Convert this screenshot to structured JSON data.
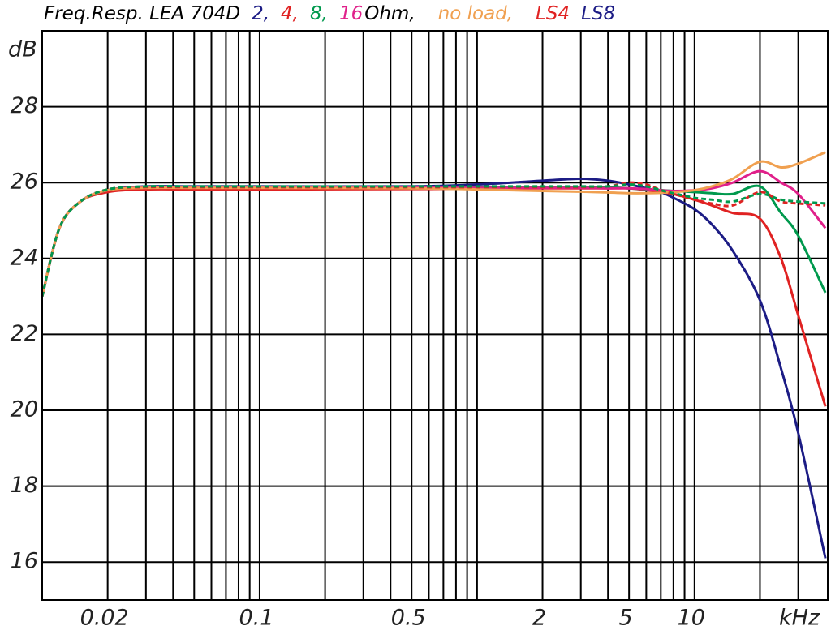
{
  "chart_data": {
    "type": "line",
    "title": "Freq.Resp. LEA 704D",
    "unit_label": "Ohm,",
    "y_label": "dB",
    "x_label": "kHz",
    "log_x": true,
    "grid": true,
    "x": [
      0.01,
      0.012,
      0.015,
      0.02,
      0.03,
      0.05,
      0.1,
      0.5,
      1,
      2,
      3,
      4,
      5,
      6,
      7,
      8,
      10,
      12,
      15,
      20,
      25,
      30,
      40
    ],
    "xlim": [
      0.01,
      41
    ],
    "xticks": [
      0.02,
      0.1,
      0.5,
      2,
      5,
      10
    ],
    "xgrid": [
      0.02,
      0.03,
      0.04,
      0.05,
      0.06,
      0.07,
      0.08,
      0.09,
      0.1,
      0.2,
      0.3,
      0.4,
      0.5,
      0.6,
      0.7,
      0.8,
      0.9,
      1,
      2,
      3,
      4,
      5,
      6,
      7,
      8,
      9,
      10,
      20,
      30
    ],
    "ylim": [
      15,
      30
    ],
    "yticks": [
      16,
      18,
      20,
      22,
      24,
      26,
      28
    ],
    "series": [
      {
        "name": "2,",
        "color": "#1c1c85",
        "dashed": false,
        "values": [
          23,
          24.8,
          25.5,
          25.8,
          25.9,
          25.9,
          25.9,
          25.9,
          25.95,
          26.05,
          26.1,
          26.05,
          25.95,
          25.85,
          25.75,
          25.6,
          25.3,
          24.9,
          24.2,
          22.9,
          21.1,
          19.4,
          16.1
        ]
      },
      {
        "name": "4,",
        "color": "#e02222",
        "dashed": false,
        "values": [
          23,
          24.8,
          25.5,
          25.75,
          25.82,
          25.82,
          25.82,
          25.83,
          25.84,
          25.85,
          25.85,
          25.85,
          25.85,
          25.8,
          25.75,
          25.7,
          25.55,
          25.4,
          25.2,
          25.05,
          24.0,
          22.5,
          20.1
        ]
      },
      {
        "name": "8,",
        "color": "#00994d",
        "dashed": false,
        "values": [
          23,
          24.8,
          25.5,
          25.8,
          25.88,
          25.88,
          25.88,
          25.88,
          25.88,
          25.88,
          25.87,
          25.87,
          25.85,
          25.82,
          25.8,
          25.78,
          25.75,
          25.72,
          25.7,
          25.9,
          25.2,
          24.6,
          23.1
        ]
      },
      {
        "name": "16",
        "color": "#e0208a",
        "dashed": false,
        "values": [
          23,
          24.8,
          25.5,
          25.8,
          25.87,
          25.87,
          25.87,
          25.87,
          25.86,
          25.86,
          25.86,
          25.85,
          25.85,
          25.83,
          25.8,
          25.78,
          25.8,
          25.85,
          26.0,
          26.3,
          26.0,
          25.7,
          24.8
        ]
      },
      {
        "name": "no load,",
        "color": "#f0a050",
        "dashed": false,
        "values": [
          23,
          24.8,
          25.5,
          25.8,
          25.86,
          25.86,
          25.86,
          25.85,
          25.82,
          25.78,
          25.76,
          25.74,
          25.72,
          25.72,
          25.73,
          25.75,
          25.8,
          25.9,
          26.1,
          26.55,
          26.4,
          26.5,
          26.8
        ]
      },
      {
        "name": "LS4",
        "color": "#e02222",
        "dashed": true,
        "values": [
          23,
          24.8,
          25.5,
          25.82,
          25.88,
          25.88,
          25.88,
          25.88,
          25.88,
          25.88,
          25.88,
          25.9,
          26.0,
          25.95,
          25.8,
          25.7,
          25.55,
          25.45,
          25.4,
          25.75,
          25.5,
          25.45,
          25.4
        ]
      },
      {
        "name": "LS8",
        "color": "#00994d",
        "legend_color": "#1c1c85",
        "dashed": true,
        "values": [
          23,
          24.8,
          25.5,
          25.82,
          25.9,
          25.9,
          25.9,
          25.9,
          25.9,
          25.9,
          25.9,
          25.9,
          25.95,
          25.9,
          25.8,
          25.72,
          25.6,
          25.55,
          25.5,
          25.7,
          25.55,
          25.5,
          25.45
        ]
      }
    ]
  }
}
